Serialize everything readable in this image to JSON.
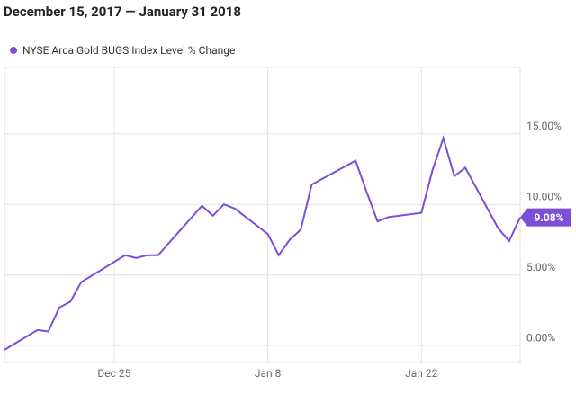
{
  "chart_data": {
    "type": "line",
    "title": "December 15,  2017 — January 31 2018",
    "x": [
      "2017-12-15",
      "2017-12-18",
      "2017-12-19",
      "2017-12-20",
      "2017-12-21",
      "2017-12-22",
      "2017-12-26",
      "2017-12-27",
      "2017-12-28",
      "2017-12-29",
      "2018-01-02",
      "2018-01-03",
      "2018-01-04",
      "2018-01-05",
      "2018-01-08",
      "2018-01-09",
      "2018-01-10",
      "2018-01-11",
      "2018-01-12",
      "2018-01-16",
      "2018-01-17",
      "2018-01-18",
      "2018-01-19",
      "2018-01-22",
      "2018-01-23",
      "2018-01-24",
      "2018-01-25",
      "2018-01-26",
      "2018-01-29",
      "2018-01-30",
      "2018-01-31"
    ],
    "series": [
      {
        "name": "NYSE Arca Gold BUGS Index Level % Change",
        "color": "#7b4fd6",
        "values": [
          -0.3,
          1.1,
          1.0,
          2.7,
          3.1,
          4.5,
          6.4,
          6.2,
          6.4,
          6.4,
          9.9,
          9.2,
          10.0,
          9.7,
          7.9,
          6.4,
          7.5,
          8.2,
          11.4,
          13.1,
          10.9,
          8.8,
          9.1,
          9.4,
          12.4,
          14.7,
          12.0,
          12.6,
          8.3,
          7.4,
          9.08
        ],
        "value_labels": [
          null,
          null,
          null,
          null,
          null,
          null,
          null,
          null,
          null,
          null,
          null,
          null,
          null,
          null,
          null,
          null,
          null,
          null,
          null,
          null,
          null,
          null,
          null,
          null,
          null,
          null,
          null,
          null,
          null,
          null,
          "9.08%"
        ]
      }
    ],
    "xlim": [
      "2017-12-15",
      "2018-01-31"
    ],
    "xticks": [
      {
        "value": "2017-12-25",
        "label": "Dec 25"
      },
      {
        "value": "2018-01-08",
        "label": "Jan 8"
      },
      {
        "value": "2018-01-22",
        "label": "Jan 22"
      }
    ],
    "ylim": [
      -1.2,
      19.7
    ],
    "yticks": [
      {
        "value": 0,
        "label": "0.00%"
      },
      {
        "value": 5,
        "label": "5.00%"
      },
      {
        "value": 10,
        "label": "10.00%"
      },
      {
        "value": 15,
        "label": "15.00%"
      }
    ],
    "grid": true
  }
}
